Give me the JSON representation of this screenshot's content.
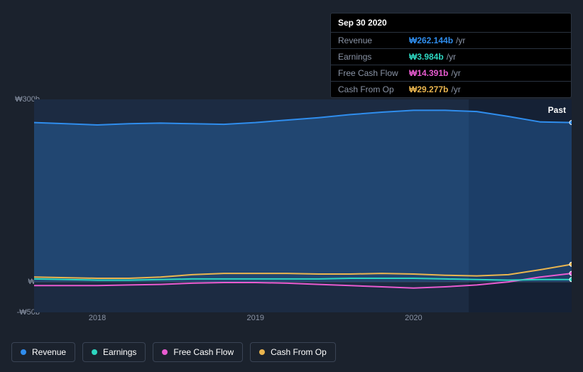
{
  "tooltip": {
    "date": "Sep 30 2020",
    "rows": [
      {
        "label": "Revenue",
        "value": "₩262.144b",
        "unit": "/yr",
        "color": "#2f8ded"
      },
      {
        "label": "Earnings",
        "value": "₩3.984b",
        "unit": "/yr",
        "color": "#2dd6c0"
      },
      {
        "label": "Free Cash Flow",
        "value": "₩14.391b",
        "unit": "/yr",
        "color": "#e85bd0"
      },
      {
        "label": "Cash From Op",
        "value": "₩29.277b",
        "unit": "/yr",
        "color": "#eab54e"
      }
    ]
  },
  "chart": {
    "type": "line-area",
    "past_label": "Past",
    "background_color": "#1b222d",
    "plot_fill_left": "#1c2b42",
    "plot_fill_right": "#152135",
    "split_x_value": 2020.35,
    "grid_color": "#2a3340",
    "axis_color": "#3a4250",
    "xlim": [
      2017.6,
      2021.0
    ],
    "ylim": [
      -50,
      300
    ],
    "y_ticks": [
      {
        "v": 300,
        "label": "₩300b"
      },
      {
        "v": 0,
        "label": "₩0"
      },
      {
        "v": -50,
        "label": "-₩50b"
      }
    ],
    "y_zero_value": 0,
    "x_ticks": [
      {
        "v": 2018,
        "label": "2018"
      },
      {
        "v": 2019,
        "label": "2019"
      },
      {
        "v": 2020,
        "label": "2020"
      }
    ],
    "x_values": [
      2017.6,
      2017.8,
      2018.0,
      2018.2,
      2018.4,
      2018.6,
      2018.8,
      2019.0,
      2019.2,
      2019.4,
      2019.6,
      2019.8,
      2020.0,
      2020.2,
      2020.4,
      2020.6,
      2020.8,
      2021.0
    ],
    "series": [
      {
        "name": "Revenue",
        "color": "#2f8ded",
        "area": true,
        "area_opacity": 0.28,
        "line_width": 2,
        "values": [
          262,
          260,
          258,
          260,
          261,
          260,
          259,
          262,
          266,
          270,
          275,
          279,
          282,
          282,
          280,
          272,
          263,
          262
        ]
      },
      {
        "name": "Cash From Op",
        "color": "#eab54e",
        "area": false,
        "line_width": 2,
        "values": [
          8,
          7,
          6,
          6,
          8,
          12,
          14,
          14,
          14,
          13,
          13,
          14,
          13,
          11,
          10,
          12,
          20,
          29
        ]
      },
      {
        "name": "Free Cash Flow",
        "color": "#e85bd0",
        "area": false,
        "line_width": 2,
        "values": [
          -6,
          -6,
          -6,
          -5,
          -4,
          -2,
          -1,
          -1,
          -2,
          -4,
          -6,
          -8,
          -10,
          -8,
          -5,
          0,
          8,
          14
        ]
      },
      {
        "name": "Earnings",
        "color": "#2dd6c0",
        "area": false,
        "line_width": 2,
        "values": [
          5,
          4,
          3,
          3,
          4,
          5,
          5,
          5,
          5,
          5,
          6,
          6,
          6,
          5,
          4,
          3,
          4,
          4
        ]
      }
    ],
    "end_marker_radius": 3
  },
  "legend": {
    "items": [
      {
        "label": "Revenue",
        "color": "#2f8ded"
      },
      {
        "label": "Earnings",
        "color": "#2dd6c0"
      },
      {
        "label": "Free Cash Flow",
        "color": "#e85bd0"
      },
      {
        "label": "Cash From Op",
        "color": "#eab54e"
      }
    ]
  }
}
